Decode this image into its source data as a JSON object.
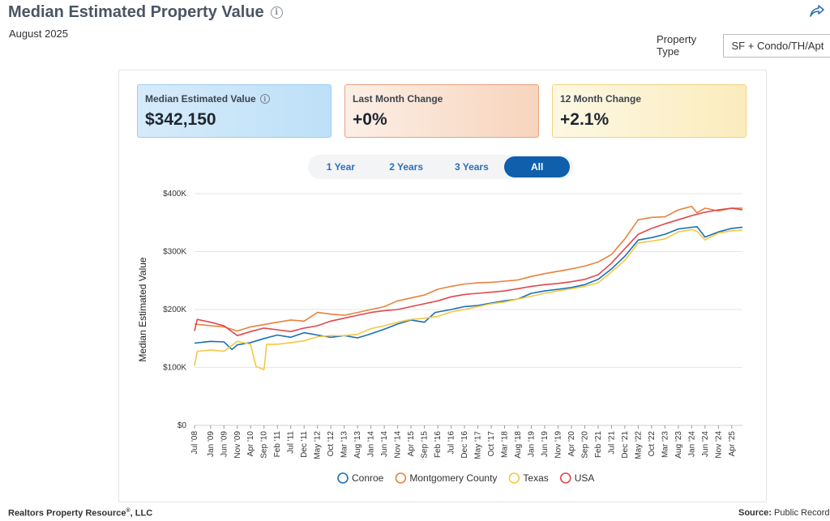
{
  "header": {
    "title": "Median Estimated Property Value",
    "subtitle": "August 2025",
    "property_type_label": "Property Type",
    "property_type_value": "SF + Condo/TH/Apt"
  },
  "stats": [
    {
      "label": "Median Estimated Value",
      "value": "$342,150"
    },
    {
      "label": "Last Month Change",
      "value": "+0%"
    },
    {
      "label": "12 Month Change",
      "value": "+2.1%"
    }
  ],
  "range_tabs": [
    {
      "label": "1 Year",
      "active": false
    },
    {
      "label": "2 Years",
      "active": false
    },
    {
      "label": "3 Years",
      "active": false
    },
    {
      "label": "All",
      "active": true
    }
  ],
  "footer": {
    "left": "Realtors Property Resource",
    "left_suffix": ", LLC",
    "registered_mark": "®",
    "source_label": "Source:",
    "source_value": "Public Records a"
  },
  "chart_data": {
    "type": "line",
    "title": "",
    "xlabel": "",
    "ylabel": "Median Estimated Value",
    "ylim": [
      0,
      400000
    ],
    "yticks": [
      0,
      100000,
      200000,
      300000,
      400000
    ],
    "ytick_labels": [
      "$0",
      "$100K",
      "$200K",
      "$300K",
      "$400K"
    ],
    "grid": true,
    "legend_position": "bottom",
    "x_tick_labels": [
      "Jul '08",
      "Jan '09",
      "Jun '09",
      "Nov '09",
      "Apr '10",
      "Sep '10",
      "Feb '11",
      "Jul '11",
      "Dec '11",
      "May '12",
      "Oct '12",
      "Mar '13",
      "Aug '13",
      "Jan '14",
      "Jun '14",
      "Nov '14",
      "Apr '15",
      "Sep '15",
      "Feb '16",
      "Jul '16",
      "Dec '16",
      "May '17",
      "Oct '17",
      "Mar '18",
      "Aug '18",
      "Jan '19",
      "Jun '19",
      "Nov '19",
      "Apr '20",
      "Sep '20",
      "Feb '21",
      "Jul '21",
      "Dec '21",
      "May '22",
      "Oct '22",
      "Mar '23",
      "Aug '23",
      "Jan '24",
      "Jun '24",
      "Nov '24",
      "Apr '25"
    ],
    "x_start": "2008-07",
    "x_end": "2025-08",
    "series": [
      {
        "name": "Conroe",
        "color": "#1a6fb5",
        "points": [
          [
            "2008-07",
            142000
          ],
          [
            "2009-01",
            145000
          ],
          [
            "2009-06",
            144000
          ],
          [
            "2009-09",
            131000
          ],
          [
            "2009-11",
            139000
          ],
          [
            "2010-04",
            143000
          ],
          [
            "2010-09",
            150000
          ],
          [
            "2011-02",
            156000
          ],
          [
            "2011-07",
            152000
          ],
          [
            "2011-12",
            160000
          ],
          [
            "2012-05",
            156000
          ],
          [
            "2012-10",
            152000
          ],
          [
            "2013-03",
            155000
          ],
          [
            "2013-08",
            151000
          ],
          [
            "2014-01",
            158000
          ],
          [
            "2014-06",
            166000
          ],
          [
            "2014-11",
            175000
          ],
          [
            "2015-04",
            182000
          ],
          [
            "2015-09",
            178000
          ],
          [
            "2016-01",
            195000
          ],
          [
            "2016-07",
            200000
          ],
          [
            "2016-12",
            205000
          ],
          [
            "2017-05",
            207000
          ],
          [
            "2017-10",
            211000
          ],
          [
            "2018-03",
            215000
          ],
          [
            "2018-08",
            218000
          ],
          [
            "2019-01",
            228000
          ],
          [
            "2019-06",
            232000
          ],
          [
            "2019-11",
            235000
          ],
          [
            "2020-04",
            238000
          ],
          [
            "2020-09",
            243000
          ],
          [
            "2021-02",
            252000
          ],
          [
            "2021-07",
            270000
          ],
          [
            "2021-12",
            292000
          ],
          [
            "2022-05",
            320000
          ],
          [
            "2022-10",
            324000
          ],
          [
            "2023-03",
            330000
          ],
          [
            "2023-08",
            339000
          ],
          [
            "2024-01",
            342000
          ],
          [
            "2024-03",
            343000
          ],
          [
            "2024-06",
            325000
          ],
          [
            "2024-11",
            334000
          ],
          [
            "2025-04",
            340000
          ],
          [
            "2025-08",
            342150
          ]
        ]
      },
      {
        "name": "Montgomery County",
        "color": "#e8823c",
        "points": [
          [
            "2008-07",
            175000
          ],
          [
            "2009-01",
            172000
          ],
          [
            "2009-06",
            170000
          ],
          [
            "2009-11",
            163000
          ],
          [
            "2010-04",
            170000
          ],
          [
            "2010-09",
            174000
          ],
          [
            "2011-02",
            178000
          ],
          [
            "2011-07",
            182000
          ],
          [
            "2011-12",
            180000
          ],
          [
            "2012-05",
            195000
          ],
          [
            "2012-10",
            192000
          ],
          [
            "2013-03",
            190000
          ],
          [
            "2013-08",
            195000
          ],
          [
            "2014-01",
            200000
          ],
          [
            "2014-06",
            205000
          ],
          [
            "2014-11",
            215000
          ],
          [
            "2015-04",
            220000
          ],
          [
            "2015-09",
            225000
          ],
          [
            "2016-02",
            235000
          ],
          [
            "2016-07",
            240000
          ],
          [
            "2016-12",
            244000
          ],
          [
            "2017-05",
            246000
          ],
          [
            "2017-10",
            247000
          ],
          [
            "2018-03",
            249000
          ],
          [
            "2018-08",
            251000
          ],
          [
            "2019-01",
            257000
          ],
          [
            "2019-06",
            262000
          ],
          [
            "2019-11",
            266000
          ],
          [
            "2020-04",
            270000
          ],
          [
            "2020-09",
            275000
          ],
          [
            "2021-02",
            282000
          ],
          [
            "2021-07",
            295000
          ],
          [
            "2021-12",
            322000
          ],
          [
            "2022-05",
            355000
          ],
          [
            "2022-10",
            359000
          ],
          [
            "2023-03",
            360000
          ],
          [
            "2023-08",
            372000
          ],
          [
            "2024-01",
            378000
          ],
          [
            "2024-03",
            367000
          ],
          [
            "2024-06",
            375000
          ],
          [
            "2024-11",
            370000
          ],
          [
            "2025-04",
            375000
          ],
          [
            "2025-08",
            375000
          ]
        ]
      },
      {
        "name": "Texas",
        "color": "#f5c842",
        "points": [
          [
            "2008-07",
            103000
          ],
          [
            "2008-08",
            128000
          ],
          [
            "2009-01",
            130000
          ],
          [
            "2009-06",
            128000
          ],
          [
            "2009-11",
            145000
          ],
          [
            "2010-04",
            140000
          ],
          [
            "2010-06",
            102000
          ],
          [
            "2010-09",
            96000
          ],
          [
            "2010-10",
            140000
          ],
          [
            "2011-02",
            140000
          ],
          [
            "2011-07",
            143000
          ],
          [
            "2011-12",
            146000
          ],
          [
            "2012-05",
            153000
          ],
          [
            "2012-10",
            155000
          ],
          [
            "2013-03",
            155000
          ],
          [
            "2013-08",
            157000
          ],
          [
            "2014-01",
            167000
          ],
          [
            "2014-06",
            172000
          ],
          [
            "2014-11",
            178000
          ],
          [
            "2015-04",
            183000
          ],
          [
            "2015-09",
            185000
          ],
          [
            "2016-02",
            188000
          ],
          [
            "2016-07",
            196000
          ],
          [
            "2016-12",
            200000
          ],
          [
            "2017-05",
            205000
          ],
          [
            "2017-10",
            210000
          ],
          [
            "2018-03",
            213000
          ],
          [
            "2018-08",
            218000
          ],
          [
            "2019-01",
            223000
          ],
          [
            "2019-06",
            228000
          ],
          [
            "2019-11",
            232000
          ],
          [
            "2020-04",
            236000
          ],
          [
            "2020-09",
            240000
          ],
          [
            "2021-02",
            246000
          ],
          [
            "2021-07",
            265000
          ],
          [
            "2021-12",
            285000
          ],
          [
            "2022-05",
            315000
          ],
          [
            "2022-10",
            318000
          ],
          [
            "2023-03",
            322000
          ],
          [
            "2023-08",
            334000
          ],
          [
            "2024-01",
            338000
          ],
          [
            "2024-03",
            335000
          ],
          [
            "2024-06",
            320000
          ],
          [
            "2024-11",
            332000
          ],
          [
            "2025-04",
            336000
          ],
          [
            "2025-08",
            337000
          ]
        ]
      },
      {
        "name": "USA",
        "color": "#e0484c",
        "points": [
          [
            "2008-07",
            163000
          ],
          [
            "2008-08",
            183000
          ],
          [
            "2009-01",
            178000
          ],
          [
            "2009-06",
            172000
          ],
          [
            "2009-11",
            155000
          ],
          [
            "2010-04",
            162000
          ],
          [
            "2010-09",
            168000
          ],
          [
            "2011-02",
            165000
          ],
          [
            "2011-07",
            162000
          ],
          [
            "2011-12",
            168000
          ],
          [
            "2012-05",
            172000
          ],
          [
            "2012-10",
            180000
          ],
          [
            "2013-03",
            185000
          ],
          [
            "2013-08",
            190000
          ],
          [
            "2014-01",
            195000
          ],
          [
            "2014-06",
            198000
          ],
          [
            "2014-11",
            200000
          ],
          [
            "2015-04",
            205000
          ],
          [
            "2015-09",
            210000
          ],
          [
            "2016-02",
            215000
          ],
          [
            "2016-07",
            222000
          ],
          [
            "2016-12",
            226000
          ],
          [
            "2017-05",
            228000
          ],
          [
            "2017-10",
            230000
          ],
          [
            "2018-03",
            232000
          ],
          [
            "2018-08",
            236000
          ],
          [
            "2019-01",
            240000
          ],
          [
            "2019-06",
            243000
          ],
          [
            "2019-11",
            245000
          ],
          [
            "2020-04",
            248000
          ],
          [
            "2020-09",
            252000
          ],
          [
            "2021-02",
            260000
          ],
          [
            "2021-07",
            280000
          ],
          [
            "2021-12",
            305000
          ],
          [
            "2022-05",
            330000
          ],
          [
            "2022-10",
            340000
          ],
          [
            "2023-03",
            348000
          ],
          [
            "2023-08",
            355000
          ],
          [
            "2024-01",
            362000
          ],
          [
            "2024-06",
            368000
          ],
          [
            "2024-11",
            372000
          ],
          [
            "2025-04",
            375000
          ],
          [
            "2025-08",
            372000
          ]
        ]
      }
    ]
  }
}
